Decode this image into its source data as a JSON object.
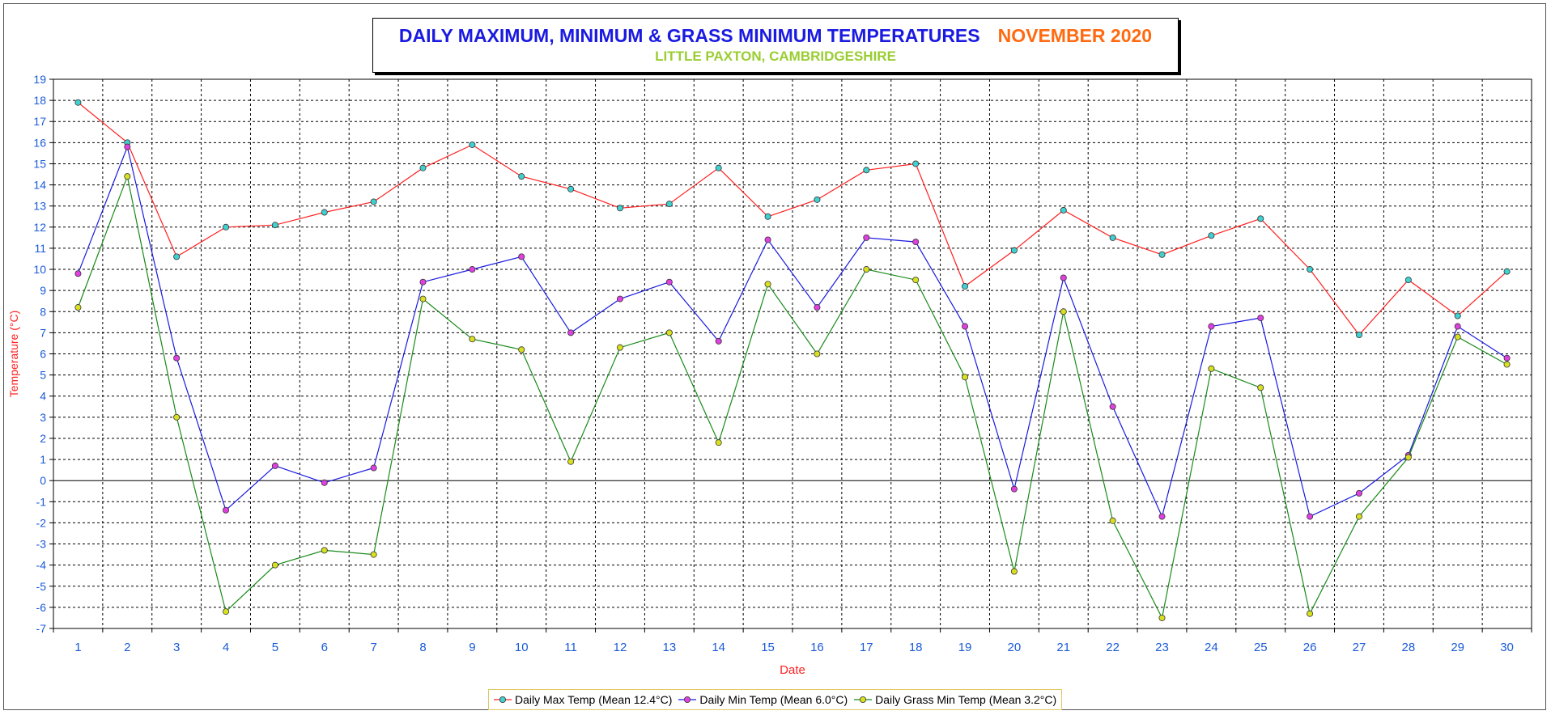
{
  "chart_data": {
    "type": "line",
    "title": "DAILY MAXIMUM, MINIMUM & GRASS MINIMUM TEMPERATURES",
    "title_month": "NOVEMBER 2020",
    "subtitle": "LITTLE PAXTON, CAMBRIDGESHIRE",
    "xlabel": "Date",
    "ylabel": "Temperature (°C)",
    "x": [
      1,
      2,
      3,
      4,
      5,
      6,
      7,
      8,
      9,
      10,
      11,
      12,
      13,
      14,
      15,
      16,
      17,
      18,
      19,
      20,
      21,
      22,
      23,
      24,
      25,
      26,
      27,
      28,
      29,
      30
    ],
    "ylim": [
      -7,
      19
    ],
    "yticks": [
      -7,
      -6,
      -5,
      -4,
      -3,
      -2,
      -1,
      0,
      1,
      2,
      3,
      4,
      5,
      6,
      7,
      8,
      9,
      10,
      11,
      12,
      13,
      14,
      15,
      16,
      17,
      18,
      19
    ],
    "grid": true,
    "legend_position": "bottom",
    "series": [
      {
        "name": "Daily Max Temp (Mean 12.4°C)",
        "line_color": "#ff2020",
        "marker_color": "#40d0d0",
        "values": [
          17.9,
          16.0,
          10.6,
          12.0,
          12.1,
          12.7,
          13.2,
          14.8,
          15.9,
          14.4,
          13.8,
          12.9,
          13.1,
          14.8,
          12.5,
          13.3,
          14.7,
          15.0,
          9.2,
          10.9,
          12.8,
          11.5,
          10.7,
          11.6,
          12.4,
          10.0,
          6.9,
          9.5,
          7.8,
          9.9
        ]
      },
      {
        "name": "Daily Min Temp (Mean 6.0°C)",
        "line_color": "#1a1ae0",
        "marker_color": "#e040e0",
        "values": [
          9.8,
          15.8,
          5.8,
          -1.4,
          0.7,
          -0.1,
          0.6,
          9.4,
          10.0,
          10.6,
          7.0,
          8.6,
          9.4,
          6.6,
          11.4,
          8.2,
          11.5,
          11.3,
          7.3,
          -0.4,
          9.6,
          3.5,
          -1.7,
          7.3,
          7.7,
          -1.7,
          -0.6,
          1.2,
          7.3,
          5.8
        ]
      },
      {
        "name": "Daily Grass Min Temp (Mean 3.2°C)",
        "line_color": "#1a8a1a",
        "marker_color": "#d8e020",
        "values": [
          8.2,
          14.4,
          3.0,
          -6.2,
          -4.0,
          -3.3,
          -3.5,
          8.6,
          6.7,
          6.2,
          0.9,
          6.3,
          7.0,
          1.8,
          9.3,
          6.0,
          10.0,
          9.5,
          4.9,
          -4.3,
          8.0,
          -1.9,
          -6.5,
          5.3,
          4.4,
          -6.3,
          -1.7,
          1.1,
          6.8,
          5.5
        ]
      }
    ]
  },
  "style": {
    "tick_color": "#1a5ad8",
    "ylabel_color": "#ff2020",
    "xlabel_color": "#ff2020",
    "grid_color": "#000000",
    "zero_line_color": "#000000"
  }
}
